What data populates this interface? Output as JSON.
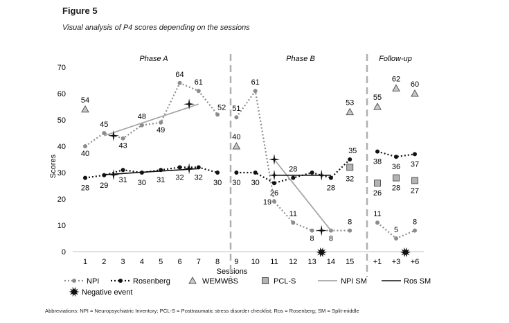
{
  "figure": {
    "title": "Figure 5",
    "subtitle": "Visual analysis of P4 scores depending on the sessions",
    "footnote": "Abbreviations: NPI = Neuropsychiatric Inventory; PCL-S = Posttraumatic stress disorder checklist; Ros = Rosenberg; SM = Split-middle"
  },
  "chart_data": {
    "type": "line",
    "title": "Visual analysis of P4 scores depending on the sessions",
    "xlabel": "Sessions",
    "ylabel": "Scores",
    "ylim": [
      0,
      70
    ],
    "yticks": [
      0,
      10,
      20,
      30,
      40,
      50,
      60,
      70
    ],
    "grid": false,
    "categories": [
      "1",
      "2",
      "3",
      "4",
      "5",
      "6",
      "7",
      "8",
      "9",
      "10",
      "11",
      "12",
      "13",
      "14",
      "15",
      "+1",
      "+3",
      "+6"
    ],
    "phases": [
      {
        "name": "Phase A",
        "from": "1",
        "to": "8"
      },
      {
        "name": "Phase B",
        "from": "9",
        "to": "15"
      },
      {
        "name": "Follow-up",
        "from": "+1",
        "to": "+6"
      }
    ],
    "series": [
      {
        "name": "NPI",
        "style": "dotted-circle",
        "color": "#8c8c8c",
        "values": [
          40,
          45,
          43,
          48,
          49,
          64,
          61,
          52,
          51,
          61,
          19,
          11,
          8,
          8,
          8,
          11,
          5,
          8
        ],
        "labels": [
          "40",
          "45",
          "43",
          "48",
          "49",
          "64",
          "61",
          "52",
          "51",
          "61",
          "19",
          "11",
          "8",
          "8",
          "8",
          "11",
          "5",
          "8"
        ],
        "breaks_after": [
          "8",
          "15"
        ]
      },
      {
        "name": "Rosenberg",
        "style": "dotted-circle",
        "color": "#111111",
        "values": [
          28,
          29,
          31,
          30,
          31,
          32,
          32,
          30,
          30,
          30,
          26,
          28,
          30,
          28,
          35,
          38,
          36,
          37
        ],
        "labels": [
          "28",
          "29",
          "31",
          "30",
          "31",
          "32",
          "32",
          "30",
          "30",
          "30",
          "26",
          "28",
          "",
          "28",
          "35",
          "38",
          "36",
          "37"
        ],
        "breaks_after": [
          "8",
          "15"
        ]
      },
      {
        "name": "WEMWBS",
        "style": "triangle",
        "points": [
          {
            "x": "1",
            "y": 54,
            "label": "54"
          },
          {
            "x": "9",
            "y": 40,
            "label": "40"
          },
          {
            "x": "15",
            "y": 53,
            "label": "53"
          },
          {
            "x": "+1",
            "y": 55,
            "label": "55"
          },
          {
            "x": "+3",
            "y": 62,
            "label": "62"
          },
          {
            "x": "+6",
            "y": 60,
            "label": "60"
          }
        ]
      },
      {
        "name": "PCL-S",
        "style": "square",
        "points": [
          {
            "x": "15",
            "y": 32,
            "label": "32"
          },
          {
            "x": "+1",
            "y": 26,
            "label": "26"
          },
          {
            "x": "+3",
            "y": 28,
            "label": "28"
          },
          {
            "x": "+6",
            "y": 27,
            "label": "27"
          }
        ]
      },
      {
        "name": "NPI SM",
        "style": "gray-line",
        "segments": [
          {
            "from": {
              "x": 2,
              "y": 44
            },
            "to": {
              "x": 7,
              "y": 56
            }
          },
          {
            "from": {
              "x": 11,
              "y": 35
            },
            "to": {
              "x": 14,
              "y": 8
            }
          }
        ]
      },
      {
        "name": "Ros SM",
        "style": "black-line",
        "segments": [
          {
            "from": {
              "x": 2,
              "y": 29.2
            },
            "to": {
              "x": 7,
              "y": 31.5
            }
          },
          {
            "from": {
              "x": 11,
              "y": 29
            },
            "to": {
              "x": 14,
              "y": 29
            }
          }
        ]
      }
    ],
    "split_middle_markers": [
      {
        "x": 2.5,
        "y": 44
      },
      {
        "x": 6.5,
        "y": 56
      },
      {
        "x": 11,
        "y": 35
      },
      {
        "x": 13.5,
        "y": 8
      },
      {
        "x": 2.5,
        "y": 29.2
      },
      {
        "x": 6.5,
        "y": 31.5
      },
      {
        "x": 11,
        "y": 29
      },
      {
        "x": 13.5,
        "y": 29
      }
    ],
    "negative_events": [
      {
        "x": 13.5,
        "y": 0
      },
      {
        "x": 17.5,
        "y": 0
      }
    ],
    "legend": {
      "placement": "bottom",
      "items": [
        "NPI",
        "Rosenberg",
        "WEMWBS",
        "PCL-S",
        "NPI SM",
        "Ros SM",
        "Negative event"
      ]
    }
  }
}
